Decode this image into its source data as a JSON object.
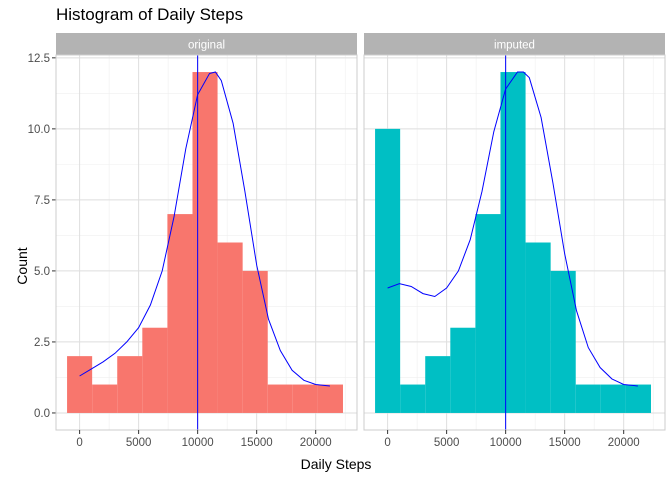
{
  "chart_data": {
    "type": "bar",
    "title": "Histogram of Daily Steps",
    "xlabel": "Daily Steps",
    "ylabel": "Count",
    "xlim": [
      -2000,
      23500
    ],
    "ylim": [
      -0.6,
      12.6
    ],
    "x_ticks": [
      0,
      5000,
      10000,
      15000,
      20000
    ],
    "x_tick_labels": [
      "0",
      "5000",
      "10000",
      "15000",
      "20000"
    ],
    "y_ticks": [
      0.0,
      2.5,
      5.0,
      7.5,
      10.0,
      12.5
    ],
    "y_tick_labels": [
      "0.0",
      "2.5",
      "5.0",
      "7.5",
      "10.0",
      "12.5"
    ],
    "grid": true,
    "bin_width": 2125,
    "bin_edges": [
      -1062.5,
      1062.5,
      3187.5,
      5312.5,
      7437.5,
      9562.5,
      11687.5,
      13812.5,
      15937.5,
      18062.5,
      20187.5,
      22312.5
    ],
    "mean_line_x": 10000,
    "panels": [
      {
        "name": "original",
        "color": "#F8766D",
        "values": [
          2,
          1,
          2,
          3,
          7,
          12,
          6,
          5,
          1,
          1,
          1
        ],
        "density_curve": [
          [
            0,
            1.3
          ],
          [
            1000,
            1.55
          ],
          [
            2000,
            1.8
          ],
          [
            3000,
            2.1
          ],
          [
            4000,
            2.5
          ],
          [
            5000,
            3.0
          ],
          [
            6000,
            3.8
          ],
          [
            7000,
            5.0
          ],
          [
            8000,
            6.9
          ],
          [
            9000,
            9.3
          ],
          [
            10000,
            11.2
          ],
          [
            11000,
            11.95
          ],
          [
            11500,
            12.0
          ],
          [
            12000,
            11.7
          ],
          [
            13000,
            10.2
          ],
          [
            14000,
            7.8
          ],
          [
            15000,
            5.2
          ],
          [
            16000,
            3.3
          ],
          [
            17000,
            2.2
          ],
          [
            18000,
            1.5
          ],
          [
            19000,
            1.15
          ],
          [
            20000,
            1.0
          ],
          [
            21200,
            0.95
          ]
        ]
      },
      {
        "name": "imputed",
        "color": "#00BFC4",
        "values": [
          10,
          1,
          2,
          3,
          7,
          12,
          6,
          5,
          1,
          1,
          1
        ],
        "density_curve": [
          [
            0,
            4.4
          ],
          [
            1000,
            4.55
          ],
          [
            2000,
            4.45
          ],
          [
            3000,
            4.2
          ],
          [
            4000,
            4.1
          ],
          [
            5000,
            4.4
          ],
          [
            6000,
            5.0
          ],
          [
            7000,
            6.1
          ],
          [
            8000,
            7.8
          ],
          [
            9000,
            9.9
          ],
          [
            10000,
            11.4
          ],
          [
            11000,
            12.0
          ],
          [
            11500,
            12.0
          ],
          [
            12000,
            11.8
          ],
          [
            13000,
            10.4
          ],
          [
            14000,
            8.1
          ],
          [
            15000,
            5.6
          ],
          [
            16000,
            3.6
          ],
          [
            17000,
            2.3
          ],
          [
            18000,
            1.6
          ],
          [
            19000,
            1.2
          ],
          [
            20000,
            1.0
          ],
          [
            21200,
            0.95
          ]
        ]
      }
    ]
  },
  "colors": {
    "strip_bg": "#B3B3B3",
    "strip_text": "#FFFFFF",
    "grid_major": "#DEDEDE",
    "grid_minor": "#EFEFEF",
    "panel_border": "#CCCCCC",
    "tick_label": "#4D4D4D",
    "curve": "#0000FF",
    "vline": "#0000FF"
  }
}
